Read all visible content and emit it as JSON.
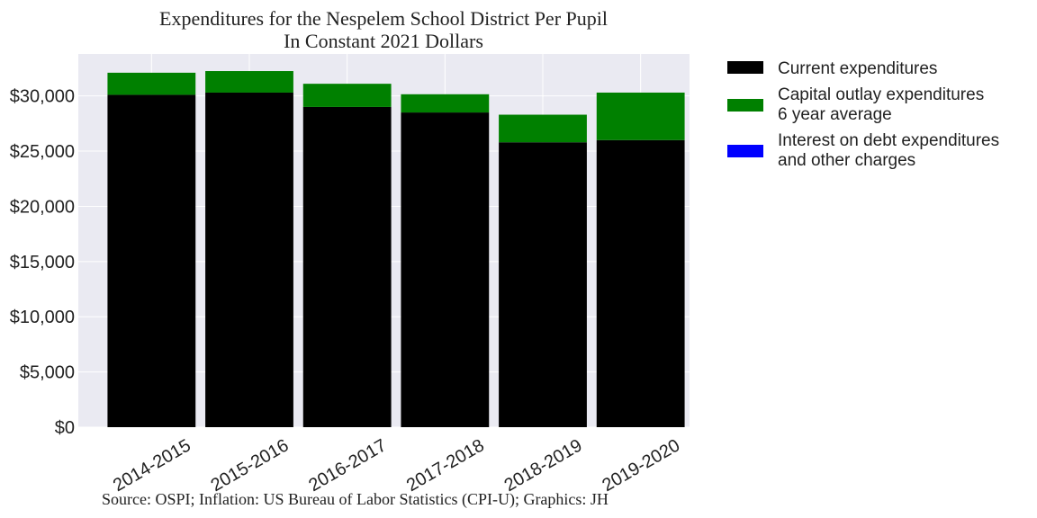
{
  "chart_data": {
    "type": "bar",
    "stacked": true,
    "title": [
      "Expenditures for the Nespelem School District Per Pupil",
      "In Constant 2021 Dollars"
    ],
    "categories": [
      "2014-2015",
      "2015-2016",
      "2016-2017",
      "2017-2018",
      "2018-2019",
      "2019-2020"
    ],
    "series": [
      {
        "name": "Current expenditures",
        "color": "#000000",
        "values": [
          30100,
          30300,
          29000,
          28500,
          25800,
          26000
        ]
      },
      {
        "name": "Capital outlay expenditures\n6 year average",
        "color": "#008000",
        "values": [
          2000,
          1950,
          2100,
          1650,
          2500,
          4300
        ]
      },
      {
        "name": "Interest on debt expenditures\nand other charges",
        "color": "#0000ff",
        "values": [
          0,
          0,
          0,
          0,
          0,
          0
        ]
      }
    ],
    "ylim": [
      0,
      33800
    ],
    "yticks": [
      0,
      5000,
      10000,
      15000,
      20000,
      25000,
      30000
    ],
    "ytick_labels": [
      "$0",
      "$5,000",
      "$10,000",
      "$15,000",
      "$20,000",
      "$25,000",
      "$30,000"
    ],
    "grid": true,
    "legend_position": "outside-right",
    "source": "Source: OSPI; Inflation: US Bureau of Labor Statistics (CPI-U); Graphics: JH"
  }
}
